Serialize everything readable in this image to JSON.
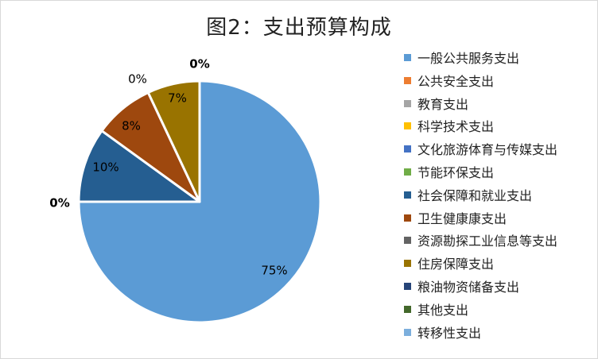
{
  "chart_data": {
    "type": "pie",
    "title": "图2：支出预算构成",
    "legend_position": "right",
    "slices": [
      {
        "label": "一般公共服务支出",
        "value": 75,
        "display": "75%",
        "color": "#5b9bd5"
      },
      {
        "label": "公共安全支出",
        "value": 0,
        "display": "",
        "color": "#ed7d31"
      },
      {
        "label": "教育支出",
        "value": 0,
        "display": "",
        "color": "#a5a5a5"
      },
      {
        "label": "科学技术支出",
        "value": 0,
        "display": "",
        "color": "#ffc000"
      },
      {
        "label": "文化旅游体育与传媒支出",
        "value": 0,
        "display": "",
        "color": "#4472c4"
      },
      {
        "label": "节能环保支出",
        "value": 0,
        "display": "",
        "color": "#70ad47"
      },
      {
        "label": "社会保障和就业支出",
        "value": 10,
        "display": "10%",
        "color": "#255e91"
      },
      {
        "label": "卫生健康康支出",
        "value": 8,
        "display": "8%",
        "color": "#9e480e"
      },
      {
        "label": "资源勘探工业信息等支出",
        "value": 0,
        "display": "0%",
        "color": "#636363"
      },
      {
        "label": "住房保障支出",
        "value": 7,
        "display": "7%",
        "color": "#997300"
      },
      {
        "label": "粮油物资储备支出",
        "value": 0,
        "display": "0%",
        "color": "#264478"
      },
      {
        "label": "其他支出",
        "value": 0,
        "display": "",
        "color": "#43682b"
      },
      {
        "label": "转移性支出",
        "value": 0,
        "display": "0%",
        "color": "#7cafdd"
      }
    ]
  }
}
